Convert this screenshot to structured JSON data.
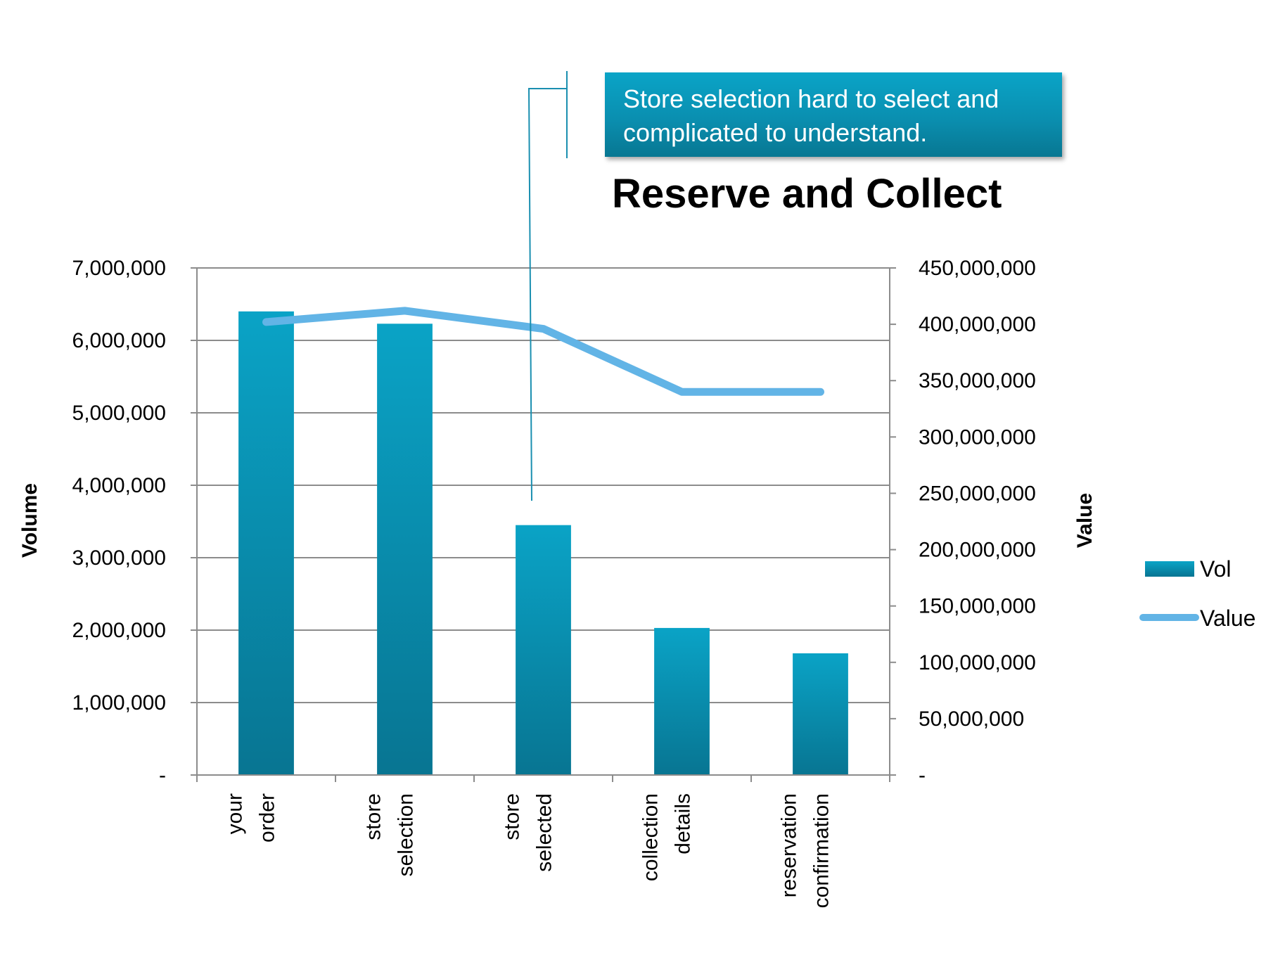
{
  "colors": {
    "bar_top": "#0aa3c6",
    "bar_bottom": "#087592",
    "line": "#62b4e6",
    "grid": "#8c8c8c",
    "callout_line": "#1a8fb0"
  },
  "callout": {
    "text": "Store selection hard to select and complicated to understand."
  },
  "chart_data": {
    "type": "bar",
    "title": "Reserve and Collect",
    "categories": [
      [
        "your",
        "order"
      ],
      [
        "store",
        "selection"
      ],
      [
        "store",
        "selected"
      ],
      [
        "collection",
        "details"
      ],
      [
        "reservation",
        "confirmation"
      ]
    ],
    "series": [
      {
        "name": "Vol",
        "type": "bar",
        "axis": "left",
        "values": [
          6400000,
          6230000,
          3450000,
          2030000,
          1680000
        ]
      },
      {
        "name": "Value",
        "type": "line",
        "axis": "right",
        "values": [
          402000000,
          412000000,
          396000000,
          340000000,
          340000000
        ]
      }
    ],
    "left_axis": {
      "label": "Volume",
      "range": [
        0,
        7000000
      ],
      "ticks": [
        "-",
        "1,000,000",
        "2,000,000",
        "3,000,000",
        "4,000,000",
        "5,000,000",
        "6,000,000",
        "7,000,000"
      ]
    },
    "right_axis": {
      "label": "Value",
      "range": [
        0,
        450000000
      ],
      "ticks": [
        "-",
        "50,000,000",
        "100,000,000",
        "150,000,000",
        "200,000,000",
        "250,000,000",
        "300,000,000",
        "350,000,000",
        "400,000,000",
        "450,000,000"
      ]
    },
    "grid": true,
    "legend": {
      "position": "right",
      "entries": [
        "Vol",
        "Value"
      ]
    }
  }
}
